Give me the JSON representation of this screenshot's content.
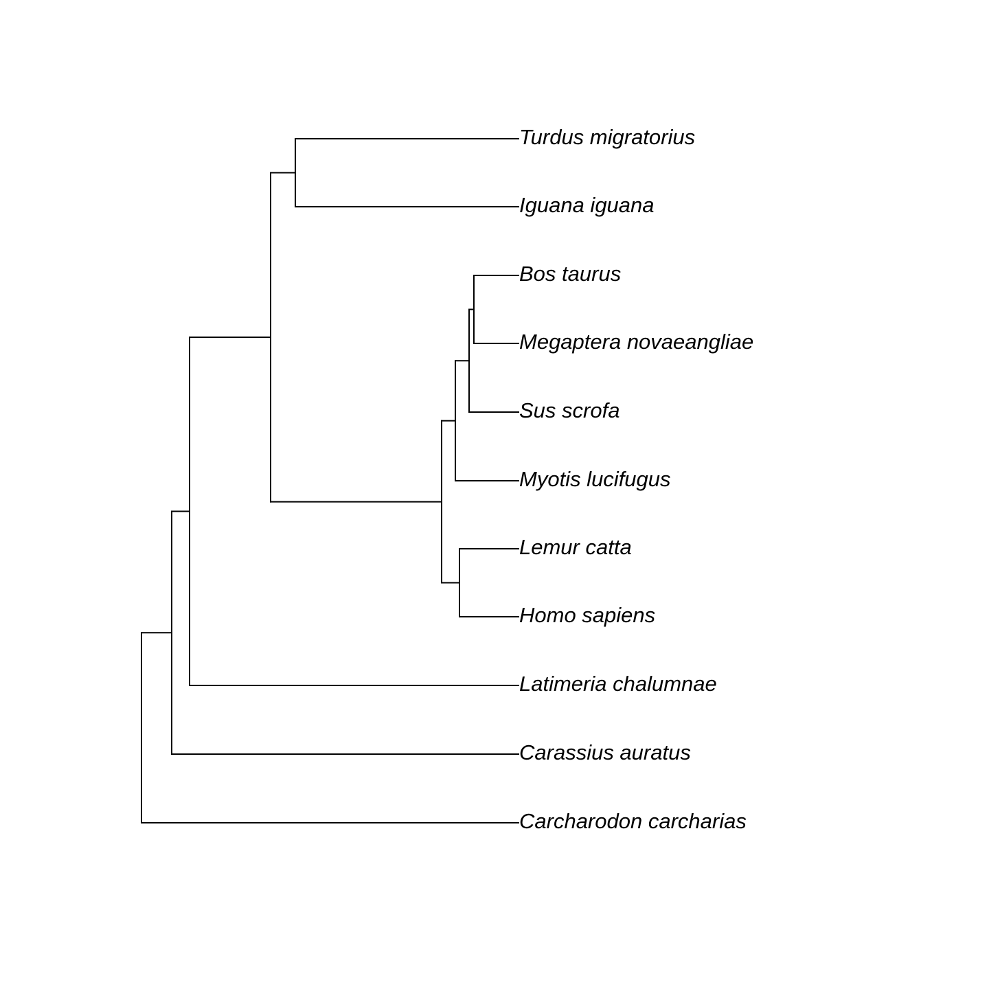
{
  "tree": {
    "line_color": "#000000",
    "tips": [
      {
        "id": "t1",
        "label": "Turdus migratorius"
      },
      {
        "id": "t2",
        "label": "Iguana iguana"
      },
      {
        "id": "t3",
        "label": "Bos taurus"
      },
      {
        "id": "t4",
        "label": "Megaptera novaeangliae"
      },
      {
        "id": "t5",
        "label": "Sus scrofa"
      },
      {
        "id": "t6",
        "label": "Myotis lucifugus"
      },
      {
        "id": "t7",
        "label": "Lemur catta"
      },
      {
        "id": "t8",
        "label": "Homo sapiens"
      },
      {
        "id": "t9",
        "label": "Latimeria chalumnae"
      },
      {
        "id": "t10",
        "label": "Carassius auratus"
      },
      {
        "id": "t11",
        "label": "Carcharodon carcharias"
      }
    ],
    "newick": "(((((t1,t2),(((((t3,t4),t5),t6),(t7,t8)))),t9),t10),t11);"
  }
}
